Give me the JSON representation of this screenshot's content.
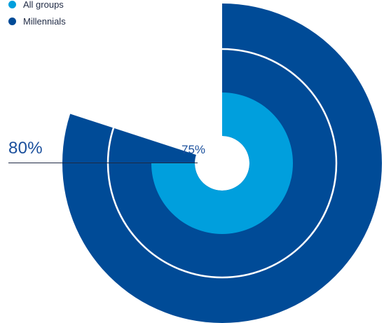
{
  "chart_data": {
    "type": "radial-bar",
    "series": [
      {
        "name": "All groups",
        "value": 75,
        "color": "#009fdd"
      },
      {
        "name": "Millennials",
        "value": 80,
        "color": "#004b97"
      }
    ],
    "data_labels": [
      "80%",
      "75%"
    ],
    "legend_position": "top-left",
    "grid": false
  }
}
